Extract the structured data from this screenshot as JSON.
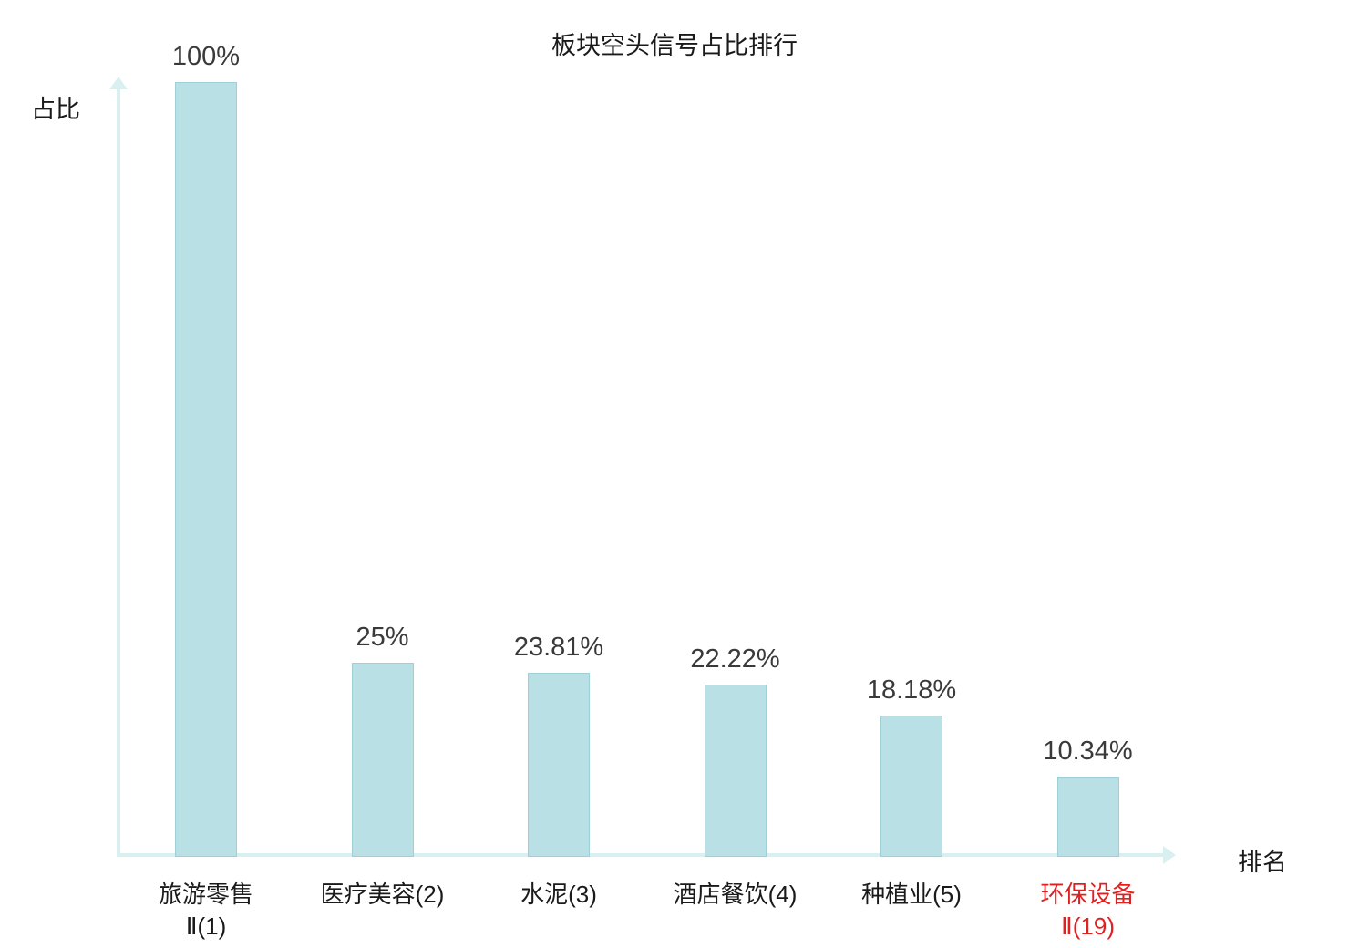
{
  "title": "板块空头信号占比排行",
  "y_axis_label": "占比",
  "x_axis_label": "排名",
  "colors": {
    "bar_fill": "#b9e0e5",
    "bar_border": "#9fd0d7",
    "axis": "#d9f0f1",
    "value_label": "#3a3a3a",
    "category": "#1a1a1a",
    "highlight": "#e02121"
  },
  "chart_data": {
    "type": "bar",
    "title": "板块空头信号占比排行",
    "xlabel": "排名",
    "ylabel": "占比",
    "ylim": [
      0,
      100
    ],
    "grid": false,
    "legend": false,
    "categories": [
      "旅游零售Ⅱ(1)",
      "医疗美容(2)",
      "水泥(3)",
      "酒店餐饮(4)",
      "种植业(5)",
      "环保设备Ⅱ(19)"
    ],
    "category_lines": [
      [
        "旅游零售",
        "Ⅱ(1)"
      ],
      [
        "医疗美容(2)"
      ],
      [
        "水泥(3)"
      ],
      [
        "酒店餐饮(4)"
      ],
      [
        "种植业(5)"
      ],
      [
        "环保设备",
        "Ⅱ(19)"
      ]
    ],
    "values": [
      100,
      25,
      23.81,
      22.22,
      18.18,
      10.34
    ],
    "value_labels": [
      "100%",
      "25%",
      "23.81%",
      "22.22%",
      "18.18%",
      "10.34%"
    ],
    "highlighted_index": 5
  }
}
